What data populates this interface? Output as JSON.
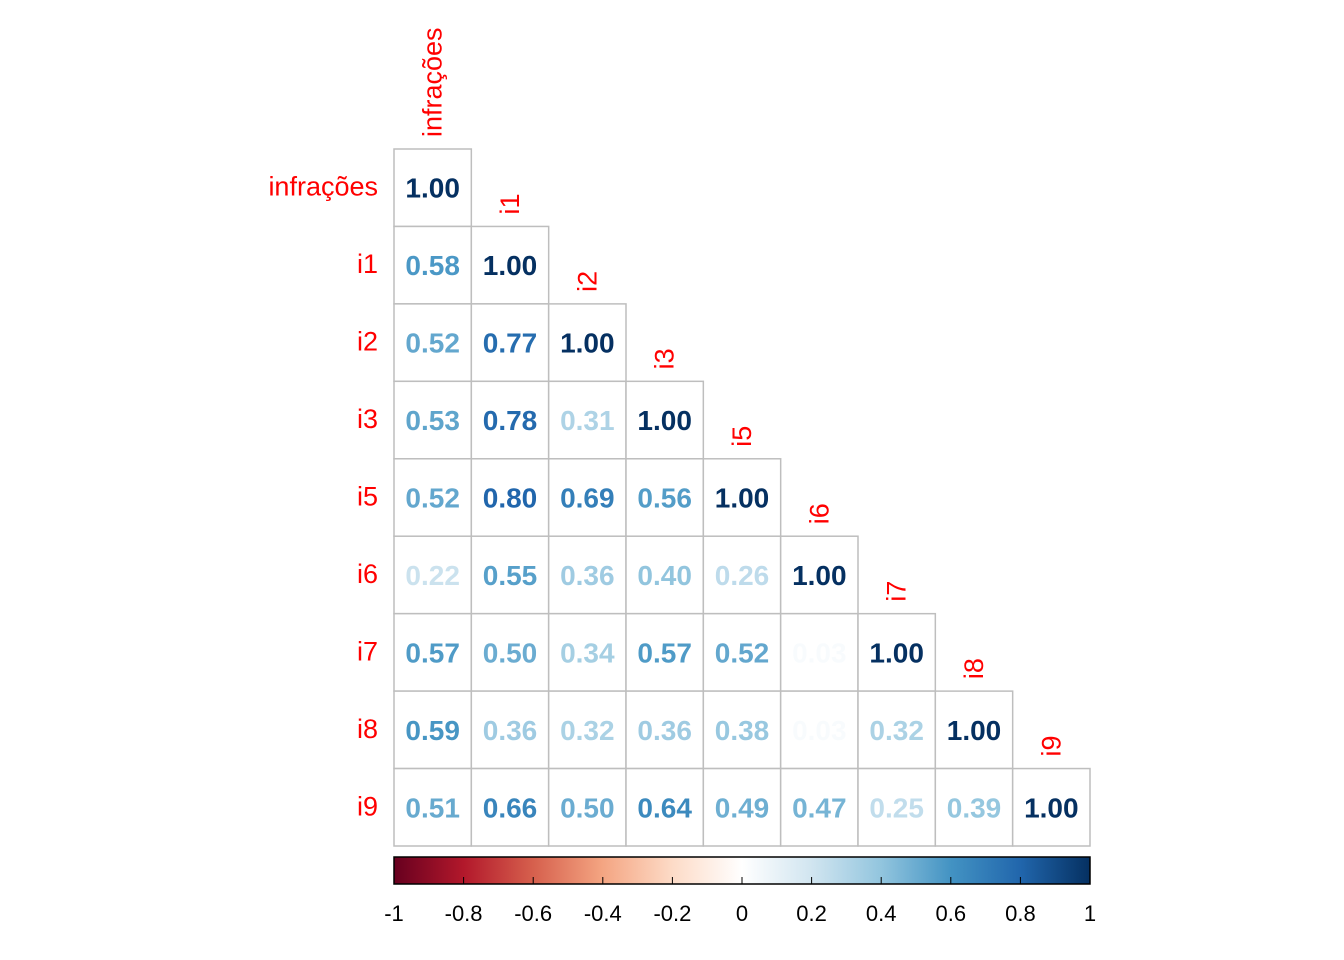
{
  "chart_data": {
    "type": "heatmap",
    "subtype": "correlation-matrix-lower-triangle",
    "variables": [
      "infrações",
      "i1",
      "i2",
      "i3",
      "i5",
      "i6",
      "i7",
      "i8",
      "i9"
    ],
    "matrix": [
      [
        1.0
      ],
      [
        0.58,
        1.0
      ],
      [
        0.52,
        0.77,
        1.0
      ],
      [
        0.53,
        0.78,
        0.31,
        1.0
      ],
      [
        0.52,
        0.8,
        0.69,
        0.56,
        1.0
      ],
      [
        0.22,
        0.55,
        0.36,
        0.4,
        0.26,
        1.0
      ],
      [
        0.57,
        0.5,
        0.34,
        0.57,
        0.52,
        0.03,
        1.0
      ],
      [
        0.59,
        0.36,
        0.32,
        0.36,
        0.38,
        0.03,
        0.32,
        1.0
      ],
      [
        0.51,
        0.66,
        0.5,
        0.64,
        0.49,
        0.47,
        0.25,
        0.39,
        1.0
      ]
    ],
    "colorbar": {
      "range": [
        -1,
        1
      ],
      "ticks": [
        "-1",
        "-0.8",
        "-0.6",
        "-0.4",
        "-0.2",
        "0",
        "0.2",
        "0.4",
        "0.6",
        "0.8",
        "1"
      ],
      "palette": [
        "#67001F",
        "#B2182B",
        "#D6604D",
        "#F4A582",
        "#FDDBC7",
        "#FFFFFF",
        "#D1E5F0",
        "#92C5DE",
        "#4393C3",
        "#2166AC",
        "#053061"
      ]
    },
    "label_color": "#ff0000",
    "grid_color": "#bebebe"
  }
}
